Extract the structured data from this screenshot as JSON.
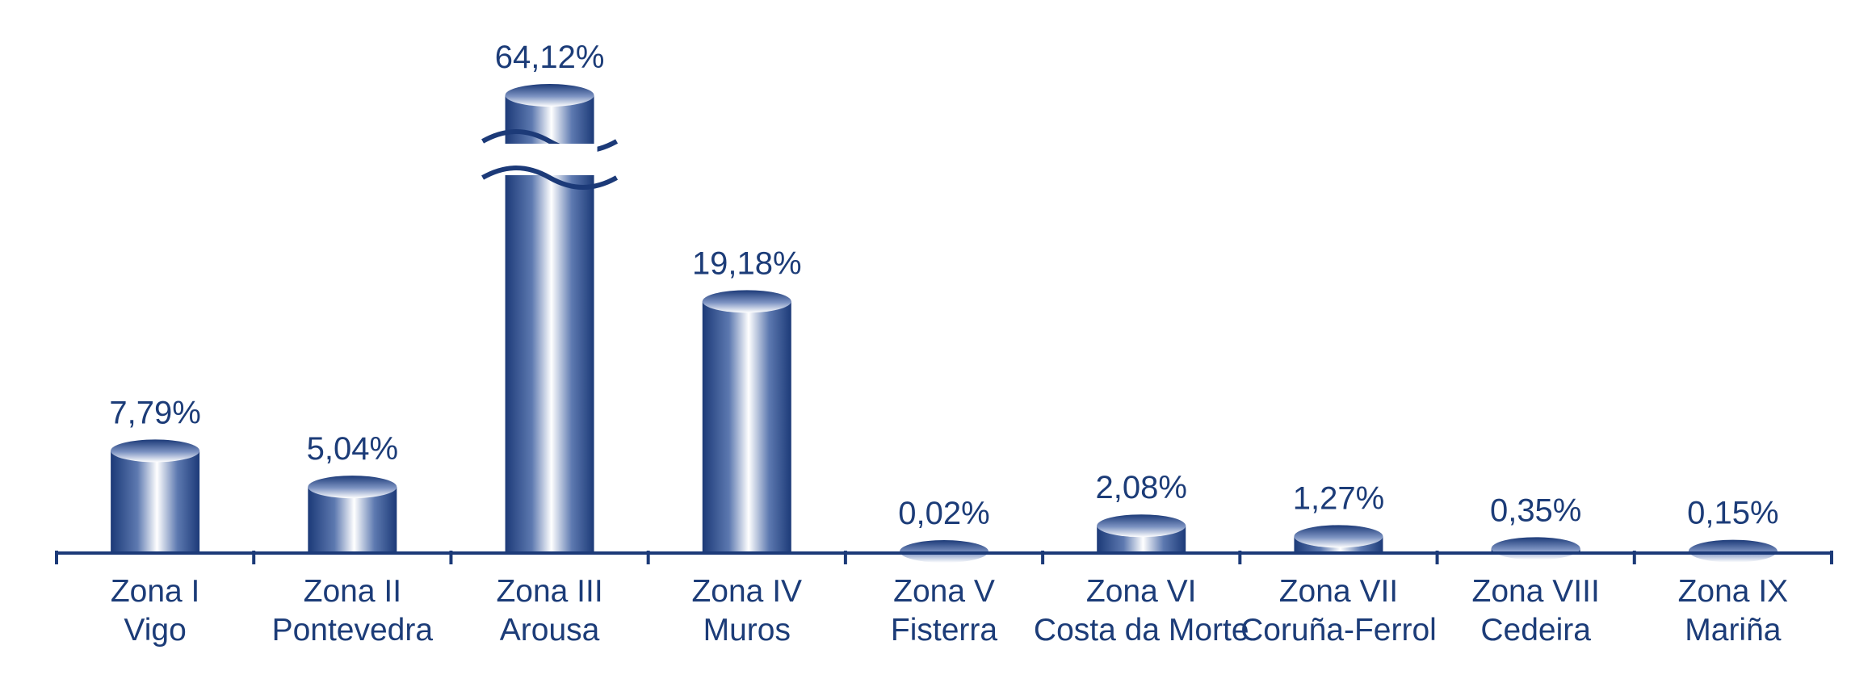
{
  "chart_data": {
    "type": "bar",
    "title": "",
    "xlabel": "",
    "ylabel": "",
    "categories": [
      {
        "line1": "Zona I",
        "line2": "Vigo"
      },
      {
        "line1": "Zona II",
        "line2": "Pontevedra"
      },
      {
        "line1": "Zona III",
        "line2": "Arousa"
      },
      {
        "line1": "Zona IV",
        "line2": "Muros"
      },
      {
        "line1": "Zona V",
        "line2": "Fisterra"
      },
      {
        "line1": "Zona VI",
        "line2": "Costa da Morte"
      },
      {
        "line1": "Zona VII",
        "line2": "Coruña-Ferrol"
      },
      {
        "line1": "Zona VIII",
        "line2": "Cedeira"
      },
      {
        "line1": "Zona IX",
        "line2": "Mariña"
      }
    ],
    "values": [
      7.79,
      5.04,
      64.12,
      19.18,
      0.02,
      2.08,
      1.27,
      0.35,
      0.15
    ],
    "value_labels": [
      "7,79%",
      "5,04%",
      "64,12%",
      "19,18%",
      "0,02%",
      "2,08%",
      "1,27%",
      "0,35%",
      "0,15%"
    ],
    "ylim": [
      0,
      20
    ],
    "axis_break_on": "Zona III",
    "grid": false,
    "legend": "none",
    "colors": {
      "bar_dark": "#1c3a78",
      "bar_light": "#ffffff",
      "text": "#1c3c78",
      "axis": "#1c3a78"
    }
  }
}
